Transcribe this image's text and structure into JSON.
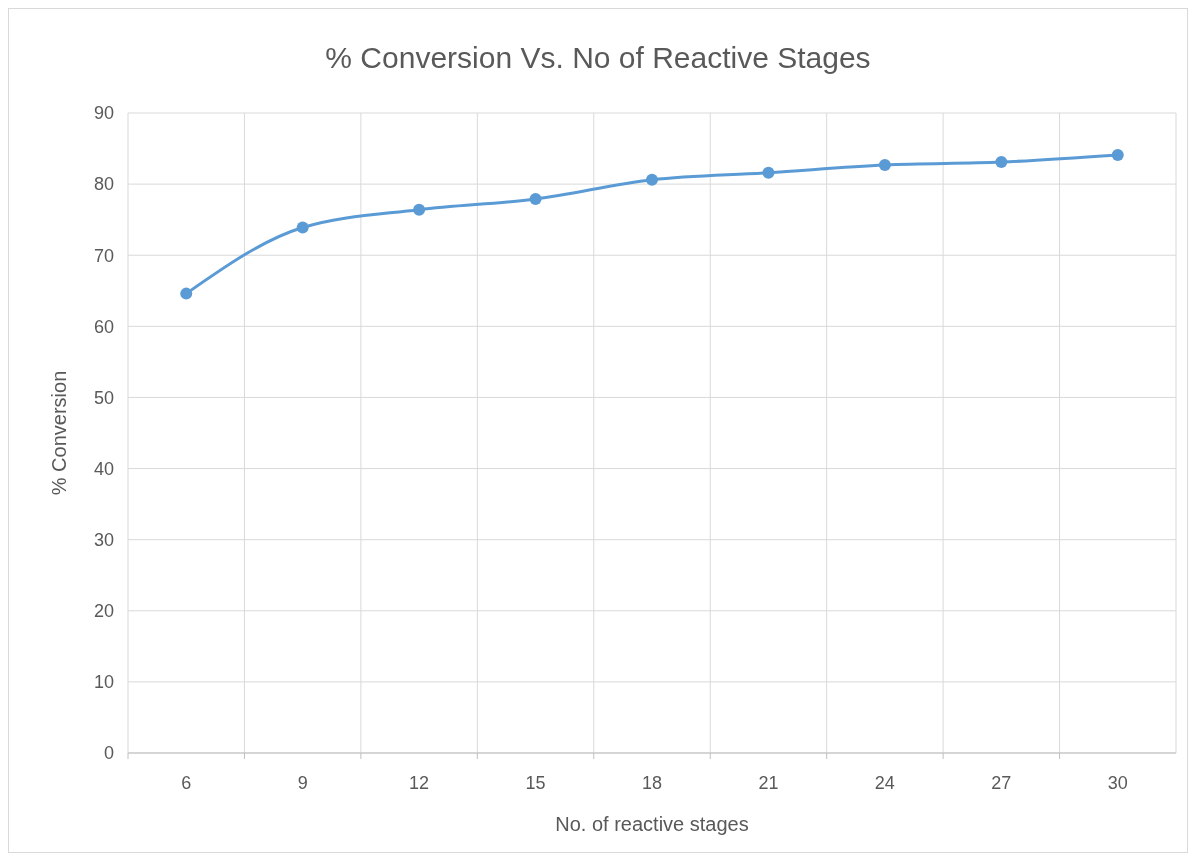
{
  "chart_data": {
    "type": "line",
    "title": "% Conversion Vs. No of Reactive Stages",
    "xlabel": "No. of reactive stages",
    "ylabel": "% Conversion",
    "categories": [
      "6",
      "9",
      "12",
      "15",
      "18",
      "21",
      "24",
      "27",
      "30"
    ],
    "series": [
      {
        "color": "#5b9bd5",
        "values": [
          64.6,
          73.9,
          76.4,
          77.9,
          80.6,
          81.6,
          82.7,
          83.1,
          84.1
        ]
      }
    ],
    "ylim": [
      0,
      90
    ],
    "yticks": [
      0,
      10,
      20,
      30,
      40,
      50,
      60,
      70,
      80,
      90
    ],
    "grid": true,
    "marker": "circle",
    "line_style": "solid"
  }
}
